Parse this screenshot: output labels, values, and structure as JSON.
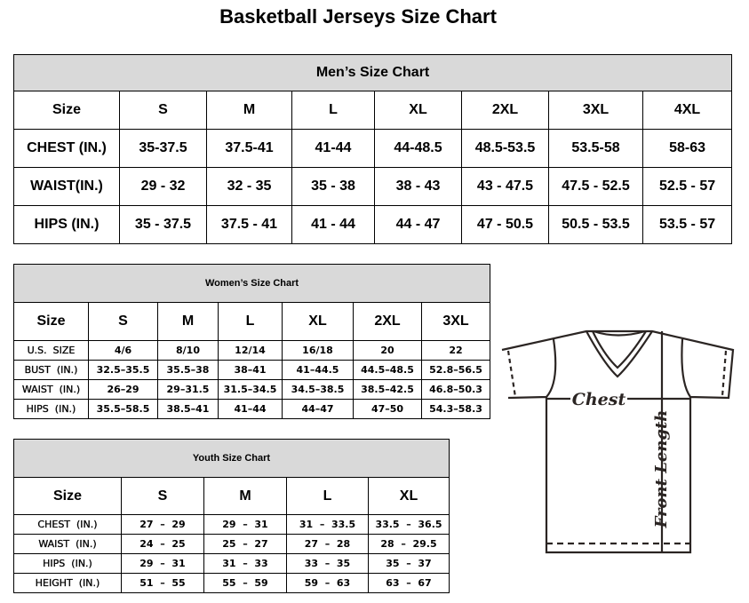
{
  "title": "Basketball Jerseys Size Chart",
  "men": {
    "caption": "Men’s Size Chart",
    "header": [
      "Size",
      "S",
      "M",
      "L",
      "XL",
      "2XL",
      "3XL",
      "4XL"
    ],
    "rows": [
      [
        "CHEST (IN.)",
        "35-37.5",
        "37.5-41",
        "41-44",
        "44-48.5",
        "48.5-53.5",
        "53.5-58",
        "58-63"
      ],
      [
        "WAIST(IN.)",
        "29 - 32",
        "32 - 35",
        "35 - 38",
        "38 - 43",
        "43 - 47.5",
        "47.5 - 52.5",
        "52.5 - 57"
      ],
      [
        "HIPS (IN.)",
        "35 - 37.5",
        "37.5 - 41",
        "41 - 44",
        "44 - 47",
        "47 - 50.5",
        "50.5 - 53.5",
        "53.5 - 57"
      ]
    ]
  },
  "women": {
    "caption": "Women’s Size Chart",
    "header": [
      "Size",
      "S",
      "M",
      "L",
      "XL",
      "2XL",
      "3XL"
    ],
    "rows": [
      [
        "U.S.  SIZE",
        "4/6",
        "8/10",
        "12/14",
        "16/18",
        "20",
        "22"
      ],
      [
        "BUST  (IN.)",
        "32.5–35.5",
        "35.5–38",
        "38–41",
        "41–44.5",
        "44.5–48.5",
        "52.8–56.5"
      ],
      [
        "WAIST  (IN.)",
        "26–29",
        "29–31.5",
        "31.5–34.5",
        "34.5–38.5",
        "38.5–42.5",
        "46.8–50.3"
      ],
      [
        "HIPS  (IN.)",
        "35.5–58.5",
        "38.5–41",
        "41–44",
        "44–47",
        "47–50",
        "54.3–58.3"
      ]
    ]
  },
  "youth": {
    "caption": "Youth Size Chart",
    "header": [
      "Size",
      "S",
      "M",
      "L",
      "XL"
    ],
    "rows": [
      [
        "CHEST  (IN.)",
        "27  –  29",
        "29  –  31",
        "31  –  33.5",
        "33.5  –  36.5"
      ],
      [
        "WAIST  (IN.)",
        "24  –  25",
        "25  –  27",
        "27  –  28",
        "28  –  29.5"
      ],
      [
        "HIPS  (IN.)",
        "29  –  31",
        "31  –  33",
        "33  –  35",
        "35  –  37"
      ],
      [
        "HEIGHT  (IN.)",
        "51  –  55",
        "55  –  59",
        "59  –  63",
        "63  –  67"
      ]
    ]
  },
  "diagram": {
    "chest_label": "Chest",
    "length_label": "Front Length",
    "line_color": "#2b2523"
  }
}
